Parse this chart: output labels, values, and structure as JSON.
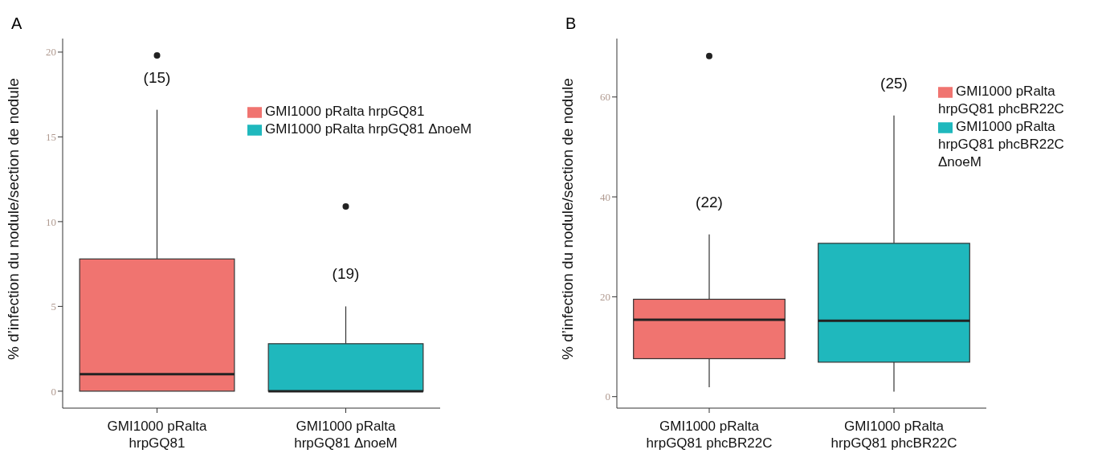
{
  "chart_data": [
    {
      "type": "box",
      "title": "A",
      "ylabel": "% d’infection du nodule/section de nodule",
      "categories": [
        "GMI1000 pRalta\nhrpGQ81",
        "GMI1000 pRalta\nhrpGQ81 ΔnoeM"
      ],
      "series": [
        {
          "name": "GMI1000 pRalta hrpGQ81",
          "color": "#f07470",
          "boxes": [
            {
              "low": 0,
              "q1": 0,
              "median": 1,
              "q3": 7.8,
              "high": 16.6,
              "outliers": [
                19.8
              ]
            },
            null
          ]
        },
        {
          "name": "GMI1000 pRalta hrpGQ81 ΔnoeM",
          "color": "#1fb8bd",
          "boxes": [
            null,
            {
              "low": 0,
              "q1": 0,
              "median": 0,
              "q3": 2.8,
              "high": 5,
              "outliers": [
                10.9
              ]
            }
          ]
        }
      ],
      "ylim": [
        -1,
        20.8
      ],
      "yticks": [
        0,
        5,
        10,
        15,
        20
      ],
      "legend": "top right",
      "annotations": [
        "(15)",
        "(19)"
      ]
    },
    {
      "type": "box",
      "title": "B",
      "ylabel": "% d’infection du nodule/section de nodule",
      "categories": [
        "GMI1000 pRalta\nhrpGQ81 phcBR22C",
        "GMI1000 pRalta\nhrpGQ81 phcBR22C"
      ],
      "series": [
        {
          "name": "GMI1000 pRalta hrpGQ81 phcBR22C",
          "color": "#f07470",
          "boxes": [
            {
              "low": 1.9,
              "q1": 7.6,
              "median": 15.4,
              "q3": 19.5,
              "high": 32.5,
              "outliers": [
                68.2
              ]
            },
            null
          ]
        },
        {
          "name": "GMI1000 pRalta hrpGQ81 phcBR22C ΔnoeM",
          "color": "#1fb8bd",
          "boxes": [
            null,
            {
              "low": 1,
              "q1": 6.9,
              "median": 15.2,
              "q3": 30.7,
              "high": 56.3
            }
          ]
        }
      ],
      "ylim": [
        -2.3,
        71.7
      ],
      "yticks": [
        0,
        20,
        40,
        60
      ],
      "legend": "top right",
      "annotations": [
        "(22)",
        "(25)"
      ]
    }
  ]
}
